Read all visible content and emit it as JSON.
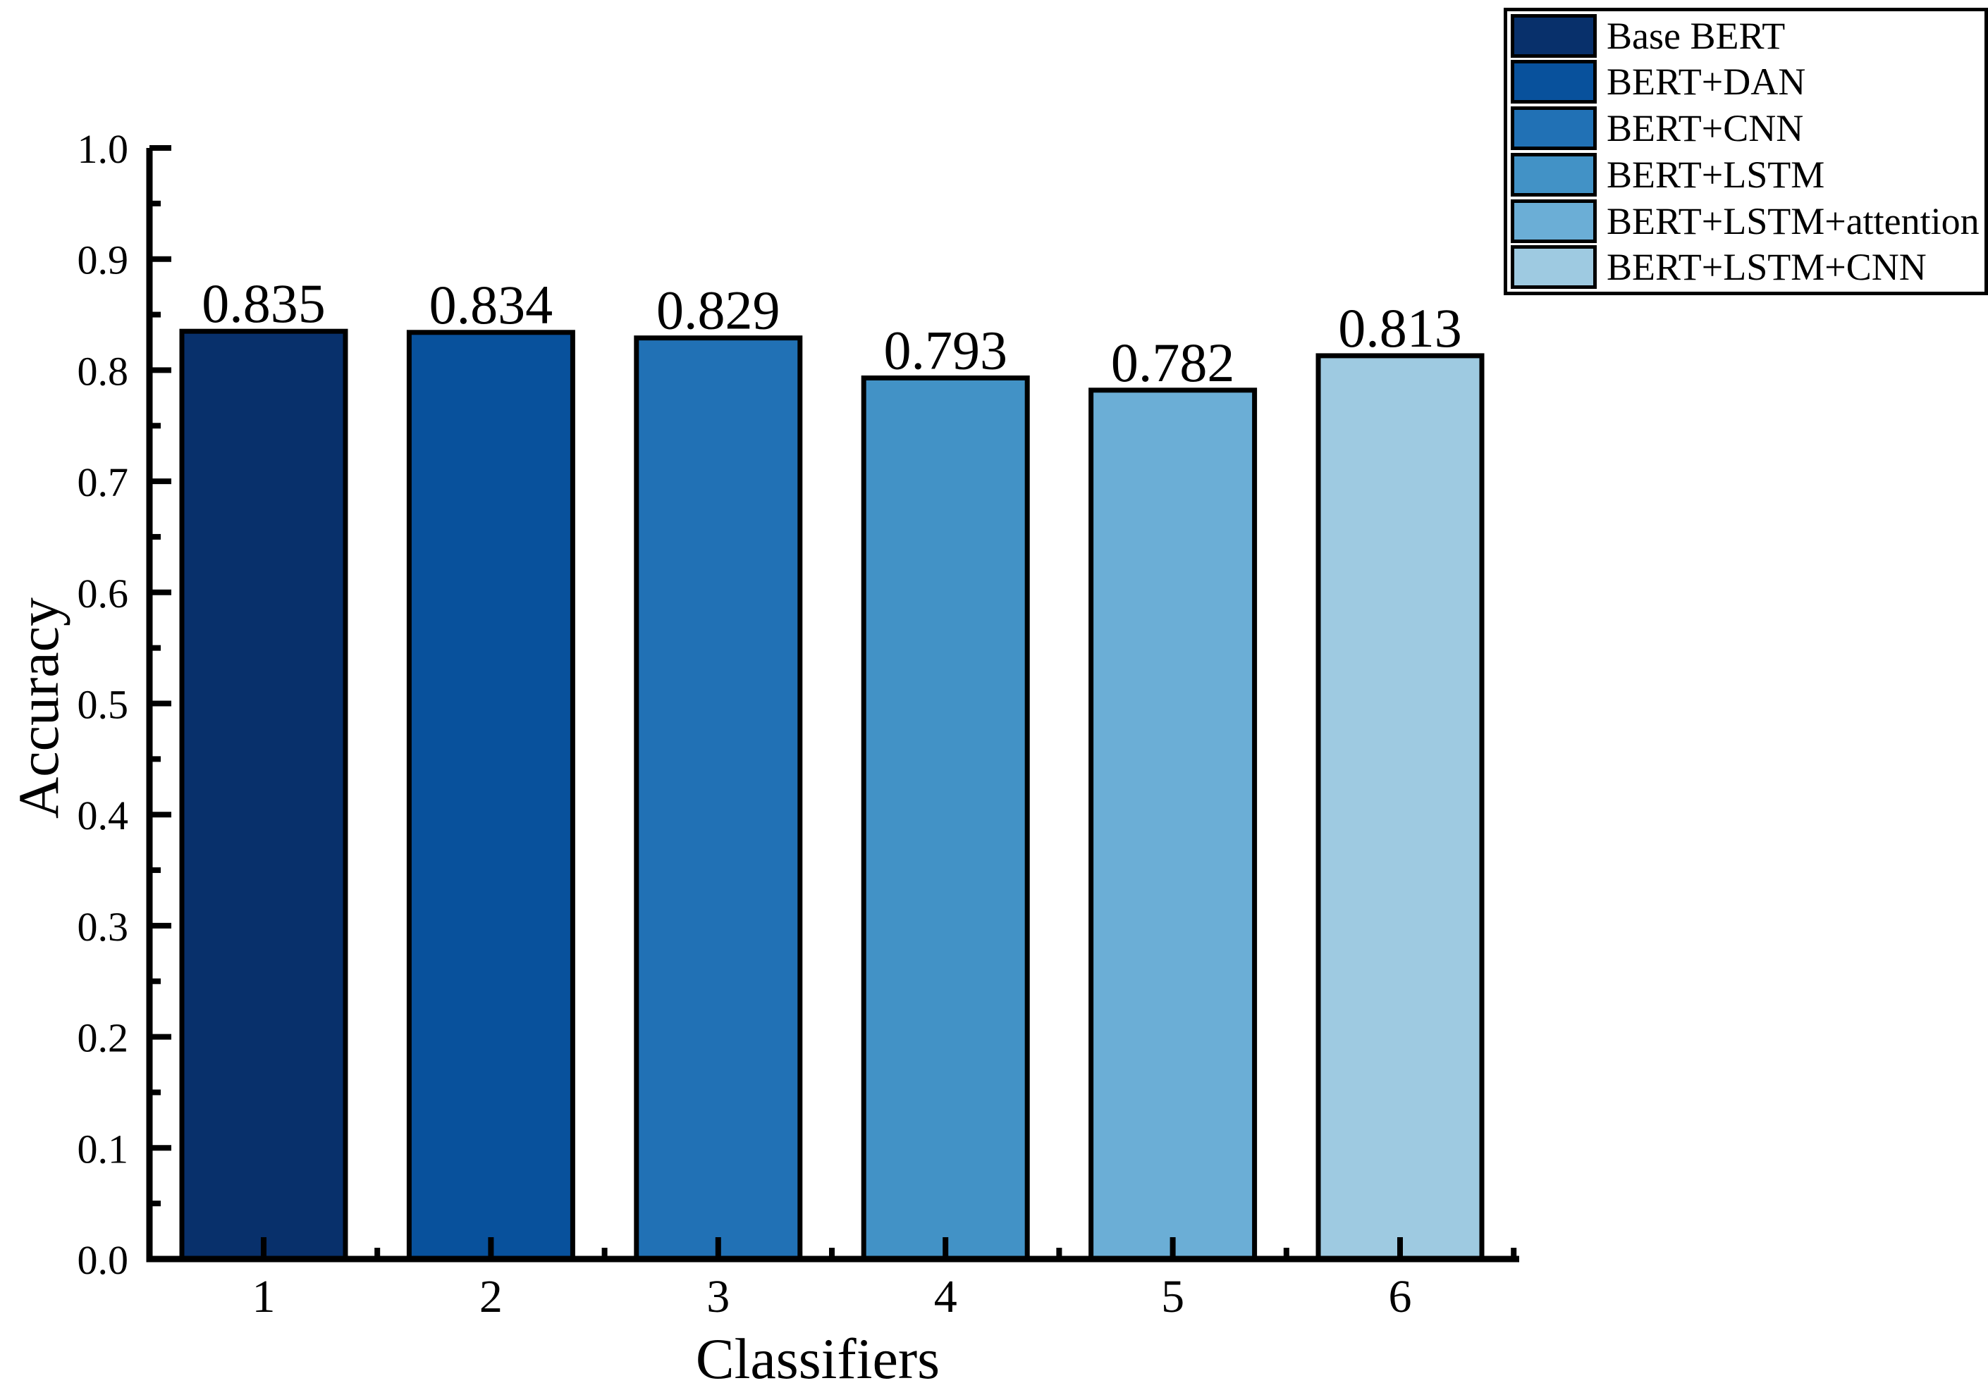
{
  "chart_data": {
    "type": "bar",
    "title": "",
    "xlabel": "Classifiers",
    "ylabel": "Accuracy",
    "categories": [
      "1",
      "2",
      "3",
      "4",
      "5",
      "6"
    ],
    "values": [
      0.835,
      0.834,
      0.829,
      0.793,
      0.782,
      0.813
    ],
    "bar_value_labels": [
      "0.835",
      "0.834",
      "0.829",
      "0.793",
      "0.782",
      "0.813"
    ],
    "series_colors": [
      "#08306b",
      "#08519c",
      "#2171b5",
      "#4292c6",
      "#6baed6",
      "#9ecae1"
    ],
    "bar_edge_color": "#000000",
    "background_color": "#ffffff",
    "text_color": "#000000",
    "ylim": [
      0.0,
      1.0
    ],
    "y_major_step": 0.1,
    "y_minor_step": 0.05,
    "y_tick_labels": [
      "0.0",
      "0.1",
      "0.2",
      "0.3",
      "0.4",
      "0.5",
      "0.6",
      "0.7",
      "0.8",
      "0.9",
      "1.0"
    ],
    "x_tick_labels": [
      "1",
      "2",
      "3",
      "4",
      "5",
      "6"
    ],
    "grid": false,
    "legend_position": "upper right",
    "legend": [
      {
        "label": "Base BERT",
        "color": "#08306b"
      },
      {
        "label": "BERT+DAN",
        "color": "#08519c"
      },
      {
        "label": "BERT+CNN",
        "color": "#2171b5"
      },
      {
        "label": "BERT+LSTM",
        "color": "#4292c6"
      },
      {
        "label": "BERT+LSTM+attention",
        "color": "#6baed6"
      },
      {
        "label": "BERT+LSTM+CNN",
        "color": "#9ecae1"
      }
    ]
  }
}
